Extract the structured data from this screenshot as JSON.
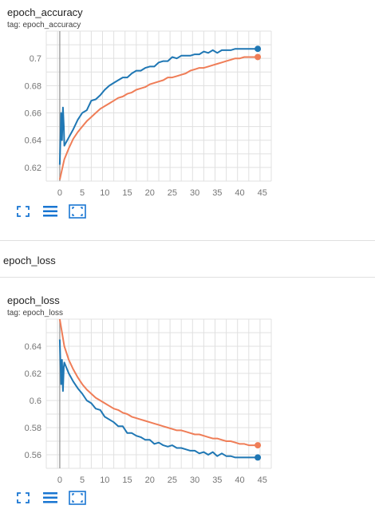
{
  "cards": [
    {
      "title": "epoch_accuracy",
      "tag": "tag: epoch_accuracy"
    },
    {
      "title": "epoch_loss",
      "tag": "tag: epoch_loss"
    }
  ],
  "group": {
    "title": "epoch_loss"
  },
  "toolbar": {
    "fullscreen_icon": "fullscreen-icon",
    "legend_icon": "legend-list-icon",
    "fit_icon": "fit-domain-icon"
  },
  "colors": {
    "train": "#ef7d57",
    "validation": "#1f77b4",
    "grid": "#e0e0e0",
    "axis": "#9e9e9e"
  },
  "chart_data": [
    {
      "type": "line",
      "title": "epoch_accuracy",
      "xlabel": "",
      "ylabel": "",
      "xlim": [
        -3,
        47
      ],
      "ylim": [
        0.61,
        0.72
      ],
      "xticks": [
        0,
        5,
        10,
        15,
        20,
        25,
        30,
        35,
        40,
        45
      ],
      "yticks": [
        0.62,
        0.64,
        0.66,
        0.68,
        0.7
      ],
      "ytick_labels": [
        "0.62",
        "0.64",
        "0.66",
        "0.68",
        "0.7"
      ],
      "grid": true,
      "series": [
        {
          "color": "#ef7d57",
          "x": [
            0,
            1,
            2,
            3,
            4,
            5,
            6,
            7,
            8,
            9,
            10,
            11,
            12,
            13,
            14,
            15,
            16,
            17,
            18,
            19,
            20,
            21,
            22,
            23,
            24,
            25,
            26,
            27,
            28,
            29,
            30,
            31,
            32,
            33,
            34,
            35,
            36,
            37,
            38,
            39,
            40,
            41,
            42,
            43,
            44
          ],
          "y": [
            0.611,
            0.626,
            0.634,
            0.641,
            0.646,
            0.65,
            0.654,
            0.657,
            0.66,
            0.663,
            0.665,
            0.667,
            0.669,
            0.671,
            0.672,
            0.674,
            0.675,
            0.677,
            0.678,
            0.679,
            0.681,
            0.682,
            0.683,
            0.684,
            0.686,
            0.686,
            0.687,
            0.688,
            0.689,
            0.691,
            0.692,
            0.693,
            0.693,
            0.694,
            0.695,
            0.696,
            0.697,
            0.698,
            0.699,
            0.7,
            0.7,
            0.701,
            0.701,
            0.701,
            0.701
          ],
          "end_marker": true
        },
        {
          "color": "#1f77b4",
          "x": [
            0,
            0.3,
            0.5,
            0.7,
            0.9,
            1,
            2,
            3,
            4,
            5,
            6,
            7,
            8,
            9,
            10,
            11,
            12,
            13,
            14,
            15,
            16,
            17,
            18,
            19,
            20,
            21,
            22,
            23,
            24,
            25,
            26,
            27,
            28,
            29,
            30,
            31,
            32,
            33,
            34,
            35,
            36,
            37,
            38,
            39,
            40,
            41,
            42,
            43,
            44
          ],
          "y": [
            0.622,
            0.66,
            0.64,
            0.664,
            0.65,
            0.636,
            0.642,
            0.648,
            0.655,
            0.66,
            0.662,
            0.669,
            0.67,
            0.673,
            0.677,
            0.68,
            0.682,
            0.684,
            0.686,
            0.686,
            0.689,
            0.691,
            0.691,
            0.693,
            0.694,
            0.694,
            0.697,
            0.698,
            0.698,
            0.701,
            0.7,
            0.702,
            0.702,
            0.702,
            0.703,
            0.703,
            0.705,
            0.704,
            0.706,
            0.704,
            0.706,
            0.706,
            0.706,
            0.707,
            0.707,
            0.707,
            0.707,
            0.707,
            0.707
          ],
          "end_marker": true
        }
      ]
    },
    {
      "type": "line",
      "title": "epoch_loss",
      "xlabel": "",
      "ylabel": "",
      "xlim": [
        -3,
        47
      ],
      "ylim": [
        0.55,
        0.66
      ],
      "xticks": [
        0,
        5,
        10,
        15,
        20,
        25,
        30,
        35,
        40,
        45
      ],
      "yticks": [
        0.56,
        0.58,
        0.6,
        0.62,
        0.64
      ],
      "ytick_labels": [
        "0.56",
        "0.58",
        "0.6",
        "0.62",
        "0.64"
      ],
      "grid": true,
      "series": [
        {
          "color": "#ef7d57",
          "x": [
            0,
            1,
            2,
            3,
            4,
            5,
            6,
            7,
            8,
            9,
            10,
            11,
            12,
            13,
            14,
            15,
            16,
            17,
            18,
            19,
            20,
            21,
            22,
            23,
            24,
            25,
            26,
            27,
            28,
            29,
            30,
            31,
            32,
            33,
            34,
            35,
            36,
            37,
            38,
            39,
            40,
            41,
            42,
            43,
            44
          ],
          "y": [
            0.66,
            0.64,
            0.63,
            0.623,
            0.617,
            0.612,
            0.608,
            0.605,
            0.602,
            0.6,
            0.598,
            0.596,
            0.594,
            0.593,
            0.591,
            0.59,
            0.588,
            0.587,
            0.586,
            0.585,
            0.584,
            0.583,
            0.582,
            0.581,
            0.58,
            0.579,
            0.578,
            0.578,
            0.577,
            0.576,
            0.575,
            0.575,
            0.574,
            0.573,
            0.572,
            0.572,
            0.571,
            0.57,
            0.57,
            0.569,
            0.568,
            0.568,
            0.567,
            0.567,
            0.567
          ],
          "end_marker": true
        },
        {
          "color": "#1f77b4",
          "x": [
            0,
            0.3,
            0.5,
            0.7,
            0.9,
            1,
            2,
            3,
            4,
            5,
            6,
            7,
            8,
            9,
            10,
            11,
            12,
            13,
            14,
            15,
            16,
            17,
            18,
            19,
            20,
            21,
            22,
            23,
            24,
            25,
            26,
            27,
            28,
            29,
            30,
            31,
            32,
            33,
            34,
            35,
            36,
            37,
            38,
            39,
            40,
            41,
            42,
            43,
            44
          ],
          "y": [
            0.645,
            0.612,
            0.63,
            0.607,
            0.625,
            0.628,
            0.62,
            0.614,
            0.609,
            0.605,
            0.6,
            0.598,
            0.594,
            0.593,
            0.588,
            0.586,
            0.584,
            0.581,
            0.581,
            0.576,
            0.576,
            0.574,
            0.573,
            0.571,
            0.571,
            0.568,
            0.569,
            0.567,
            0.566,
            0.567,
            0.565,
            0.565,
            0.564,
            0.563,
            0.563,
            0.561,
            0.562,
            0.56,
            0.562,
            0.559,
            0.561,
            0.559,
            0.559,
            0.558,
            0.558,
            0.558,
            0.558,
            0.558,
            0.558
          ],
          "end_marker": true
        }
      ]
    }
  ]
}
